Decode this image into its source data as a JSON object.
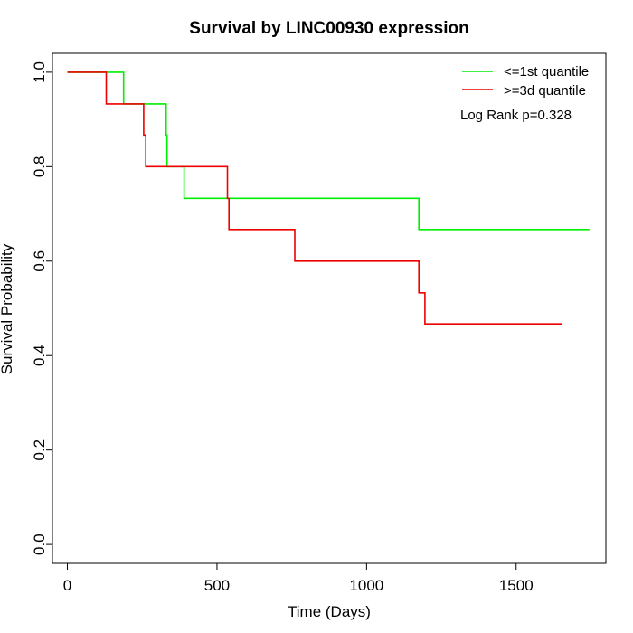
{
  "chart_data": {
    "type": "line",
    "title": "Survival by LINC00930 expression",
    "xlabel": "Time (Days)",
    "ylabel": "Survival Probability",
    "xlim": [
      -50,
      1800
    ],
    "ylim": [
      -0.04,
      1.04
    ],
    "x_ticks": [
      0,
      500,
      1000,
      1500
    ],
    "x_tick_labels": [
      "0",
      "500",
      "1000",
      "1500"
    ],
    "y_ticks": [
      0.0,
      0.2,
      0.4,
      0.6,
      0.8,
      1.0
    ],
    "y_tick_labels": [
      "0.0",
      "0.2",
      "0.4",
      "0.6",
      "0.8",
      "1.0"
    ],
    "grid": false,
    "legend_position": "top-right",
    "annotation": "Log Rank p=0.328",
    "series": [
      {
        "name": "<=1st quantile",
        "color": "#00ee00",
        "step_points": [
          [
            0,
            1.0
          ],
          [
            188,
            1.0
          ],
          [
            188,
            0.933
          ],
          [
            330,
            0.933
          ],
          [
            330,
            0.867
          ],
          [
            333,
            0.867
          ],
          [
            333,
            0.8
          ],
          [
            390,
            0.8
          ],
          [
            390,
            0.733
          ],
          [
            1175,
            0.733
          ],
          [
            1175,
            0.667
          ],
          [
            1745,
            0.667
          ]
        ]
      },
      {
        "name": ">=3d quantile",
        "color": "#ee0000",
        "step_points": [
          [
            0,
            1.0
          ],
          [
            130,
            1.0
          ],
          [
            130,
            0.933
          ],
          [
            255,
            0.933
          ],
          [
            255,
            0.867
          ],
          [
            262,
            0.867
          ],
          [
            262,
            0.8
          ],
          [
            535,
            0.8
          ],
          [
            535,
            0.733
          ],
          [
            540,
            0.733
          ],
          [
            540,
            0.667
          ],
          [
            760,
            0.667
          ],
          [
            760,
            0.6
          ],
          [
            1175,
            0.6
          ],
          [
            1175,
            0.533
          ],
          [
            1195,
            0.533
          ],
          [
            1195,
            0.467
          ],
          [
            1655,
            0.467
          ]
        ]
      }
    ]
  }
}
